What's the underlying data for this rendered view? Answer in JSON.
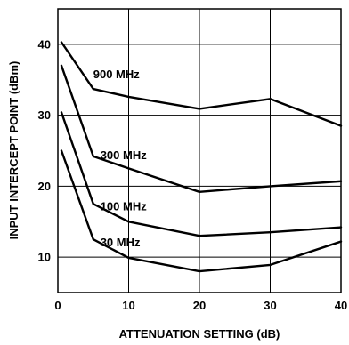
{
  "chart_data": {
    "type": "line",
    "xlabel": "ATTENUATION SETTING (dB)",
    "ylabel": "INPUT INTERCEPT POINT (dBm)",
    "xlim": [
      0,
      40
    ],
    "ylim": [
      5,
      45
    ],
    "x_ticks": [
      0,
      10,
      20,
      30,
      40
    ],
    "y_ticks": [
      10,
      20,
      30,
      40
    ],
    "grid": true,
    "series": [
      {
        "name": "900 MHz",
        "x": [
          0.5,
          5,
          10,
          20,
          30,
          40
        ],
        "y": [
          40.3,
          33.7,
          32.6,
          30.9,
          32.3,
          28.5
        ]
      },
      {
        "name": "300 MHz",
        "x": [
          0.5,
          5,
          10,
          20,
          30,
          40
        ],
        "y": [
          37.0,
          24.2,
          22.5,
          19.2,
          20.0,
          20.7
        ]
      },
      {
        "name": "100 MHz",
        "x": [
          0.5,
          5,
          10,
          20,
          30,
          40
        ],
        "y": [
          30.4,
          17.5,
          15.0,
          13.0,
          13.5,
          14.2
        ]
      },
      {
        "name": "30 MHz",
        "x": [
          0.5,
          5,
          10,
          20,
          30,
          40
        ],
        "y": [
          25.0,
          12.5,
          9.9,
          8.0,
          8.9,
          12.2
        ]
      }
    ]
  }
}
